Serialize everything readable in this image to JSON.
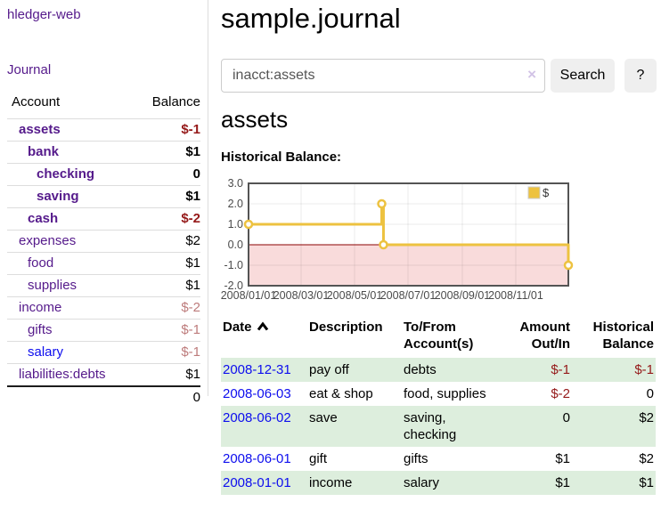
{
  "app": {
    "brand": "hledger-web",
    "nav_journal": "Journal"
  },
  "sidebar": {
    "header": {
      "account": "Account",
      "balance": "Balance"
    },
    "accounts": [
      {
        "name": "assets",
        "indent": 1,
        "bold": true,
        "link_color": "purple",
        "balance": "$-1",
        "tone": "negative"
      },
      {
        "name": "bank",
        "indent": 2,
        "bold": true,
        "link_color": "purple",
        "balance": "$1",
        "tone": "normal"
      },
      {
        "name": "checking",
        "indent": 3,
        "bold": true,
        "link_color": "purple",
        "balance": "0",
        "tone": "normal"
      },
      {
        "name": "saving",
        "indent": 3,
        "bold": true,
        "link_color": "purple",
        "balance": "$1",
        "tone": "normal"
      },
      {
        "name": "cash",
        "indent": 2,
        "bold": true,
        "link_color": "purple",
        "balance": "$-2",
        "tone": "negative"
      },
      {
        "name": "expenses",
        "indent": 1,
        "bold": false,
        "link_color": "purple",
        "balance": "$2",
        "tone": "normal"
      },
      {
        "name": "food",
        "indent": 2,
        "bold": false,
        "link_color": "purple",
        "balance": "$1",
        "tone": "normal"
      },
      {
        "name": "supplies",
        "indent": 2,
        "bold": false,
        "link_color": "purple",
        "balance": "$1",
        "tone": "normal"
      },
      {
        "name": "income",
        "indent": 1,
        "bold": false,
        "link_color": "purple",
        "balance": "$-2",
        "tone": "muted"
      },
      {
        "name": "gifts",
        "indent": 2,
        "bold": false,
        "link_color": "purple",
        "balance": "$-1",
        "tone": "muted"
      },
      {
        "name": "salary",
        "indent": 2,
        "bold": false,
        "link_color": "blue",
        "balance": "$-1",
        "tone": "muted"
      },
      {
        "name": "liabilities:debts",
        "indent": 1,
        "bold": false,
        "link_color": "purple",
        "balance": "$1",
        "tone": "normal"
      }
    ],
    "total": "0"
  },
  "header": {
    "title": "sample.journal"
  },
  "search": {
    "value": "inacct:assets",
    "clear_icon": "×",
    "button_label": "Search",
    "help_label": "?"
  },
  "account_page": {
    "heading": "assets",
    "chart_label": "Historical Balance:"
  },
  "chart_data": {
    "type": "line",
    "step": true,
    "title": "Historical Balance:",
    "series": [
      {
        "name": "$",
        "color": "#edc240",
        "points": [
          [
            "2008-01-01",
            1
          ],
          [
            "2008-06-01",
            2
          ],
          [
            "2008-06-03",
            0
          ],
          [
            "2008-12-31",
            -1
          ]
        ]
      }
    ],
    "xlim": [
      "2008-01-01",
      "2008-12-31"
    ],
    "ylim": [
      -2,
      3
    ],
    "x_ticks": [
      "2008/01/01",
      "2008/03/01",
      "2008/05/01",
      "2008/07/01",
      "2008/09/01",
      "2008/11/01"
    ],
    "y_ticks": [
      3.0,
      2.0,
      1.0,
      0.0,
      -1.0,
      -2.0
    ],
    "y_tick_labels": [
      "3.0",
      "2.0",
      "1.0",
      "0.0",
      "-1.0",
      "-2.0"
    ],
    "grid": true,
    "legend_position": "top-right",
    "legend_label": "$",
    "colors": {
      "negative_region": "#f9dbdb",
      "zero_line": "#8b0000",
      "border": "#545454",
      "gridline": "rgba(0,0,0,0.08)",
      "tick_text": "#4a4a4a"
    }
  },
  "register_table": {
    "columns": [
      "Date",
      "Description",
      "To/From Account(s)",
      "Amount Out/In",
      "Historical Balance"
    ],
    "sort_column": "Date",
    "sort_direction": "ascending",
    "rows": [
      {
        "date": "2008-12-31",
        "description": "pay off",
        "accounts": "debts",
        "amount": "$-1",
        "amount_tone": "negative",
        "balance": "$-1",
        "balance_tone": "negative"
      },
      {
        "date": "2008-06-03",
        "description": "eat & shop",
        "accounts": "food, supplies",
        "amount": "$-2",
        "amount_tone": "negative",
        "balance": "0",
        "balance_tone": "normal"
      },
      {
        "date": "2008-06-02",
        "description": "save",
        "accounts": "saving, checking",
        "amount": "0",
        "amount_tone": "normal",
        "balance": "$2",
        "balance_tone": "normal"
      },
      {
        "date": "2008-06-01",
        "description": "gift",
        "accounts": "gifts",
        "amount": "$1",
        "amount_tone": "normal",
        "balance": "$2",
        "balance_tone": "normal"
      },
      {
        "date": "2008-01-01",
        "description": "income",
        "accounts": "salary",
        "amount": "$1",
        "amount_tone": "normal",
        "balance": "$1",
        "balance_tone": "normal"
      }
    ]
  },
  "colors": {
    "link_purple": "#551a8b",
    "link_blue": "#0d0dee",
    "negative_amount": "#951919",
    "muted_negative_amount": "#bd7b7b",
    "row_stripe_green": "#ddeedd",
    "series_gold": "#edc240"
  }
}
